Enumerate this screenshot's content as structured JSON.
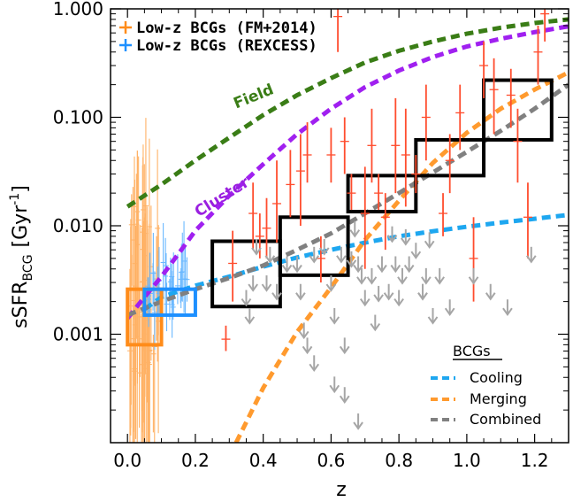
{
  "chart_data": {
    "type": "scatter",
    "xlabel": "z",
    "ylabel": "sSFR",
    "ylabel_sub": "BCG",
    "ylabel_units": "[Gyr",
    "ylabel_sup": "-1",
    "ylabel_close": "]",
    "xlim": [
      -0.05,
      1.3
    ],
    "ylim": [
      0.0001,
      1.0
    ],
    "yscale": "log",
    "x_ticks": [
      "0.0",
      "0.2",
      "0.4",
      "0.6",
      "0.8",
      "1.0",
      "1.2"
    ],
    "x_tick_values": [
      0.0,
      0.2,
      0.4,
      0.6,
      0.8,
      1.0,
      1.2
    ],
    "y_ticks": [
      "1.000",
      "0.100",
      "0.010",
      "0.001"
    ],
    "y_tick_values": [
      1.0,
      0.1,
      0.01,
      0.001
    ],
    "legend": [
      {
        "label": "Low-z BCGs (FM+2014)",
        "color": "#ff8c1a"
      },
      {
        "label": "Low-z BCGs (REXCESS)",
        "color": "#1e90ff"
      }
    ],
    "legend2_title": "BCGs",
    "legend2": [
      {
        "label": "Cooling",
        "color": "#1ea7f0"
      },
      {
        "label": "Merging",
        "color": "#ff9a2e"
      },
      {
        "label": "Combined",
        "color": "#808080"
      }
    ],
    "curve_labels": [
      {
        "label": "Field",
        "color": "#3a7d16",
        "x": 0.32,
        "y": 0.12,
        "angle": -22
      },
      {
        "label": "Cluster",
        "color": "#9a1fe0",
        "x": 0.21,
        "y": 0.012,
        "angle": -32
      }
    ],
    "curves": [
      {
        "name": "field",
        "color": "#3a7d16",
        "points": [
          [
            0.0,
            0.015
          ],
          [
            0.1,
            0.024
          ],
          [
            0.2,
            0.04
          ],
          [
            0.3,
            0.065
          ],
          [
            0.4,
            0.105
          ],
          [
            0.5,
            0.16
          ],
          [
            0.6,
            0.23
          ],
          [
            0.7,
            0.32
          ],
          [
            0.8,
            0.41
          ],
          [
            0.9,
            0.5
          ],
          [
            1.0,
            0.59
          ],
          [
            1.1,
            0.67
          ],
          [
            1.2,
            0.74
          ],
          [
            1.3,
            0.8
          ]
        ]
      },
      {
        "name": "cluster",
        "color": "#a020f0",
        "points": [
          [
            0.0,
            0.0014
          ],
          [
            0.05,
            0.0022
          ],
          [
            0.1,
            0.0034
          ],
          [
            0.15,
            0.0055
          ],
          [
            0.2,
            0.009
          ],
          [
            0.3,
            0.019
          ],
          [
            0.4,
            0.037
          ],
          [
            0.5,
            0.07
          ],
          [
            0.6,
            0.12
          ],
          [
            0.7,
            0.19
          ],
          [
            0.8,
            0.27
          ],
          [
            0.9,
            0.36
          ],
          [
            1.0,
            0.45
          ],
          [
            1.1,
            0.53
          ],
          [
            1.2,
            0.61
          ],
          [
            1.3,
            0.69
          ]
        ]
      },
      {
        "name": "cooling",
        "color": "#1ea7f0",
        "points": [
          [
            0.05,
            0.0017
          ],
          [
            0.1,
            0.0022
          ],
          [
            0.2,
            0.0028
          ],
          [
            0.3,
            0.0034
          ],
          [
            0.4,
            0.0042
          ],
          [
            0.5,
            0.0051
          ],
          [
            0.6,
            0.006
          ],
          [
            0.7,
            0.007
          ],
          [
            0.8,
            0.008
          ],
          [
            0.9,
            0.0089
          ],
          [
            1.0,
            0.0098
          ],
          [
            1.1,
            0.0107
          ],
          [
            1.2,
            0.0116
          ],
          [
            1.3,
            0.0126
          ]
        ]
      },
      {
        "name": "merging",
        "color": "#ff9a2e",
        "points": [
          [
            0.32,
            0.0001
          ],
          [
            0.4,
            0.00032
          ],
          [
            0.5,
            0.00105
          ],
          [
            0.6,
            0.0027
          ],
          [
            0.7,
            0.0074
          ],
          [
            0.8,
            0.017
          ],
          [
            0.9,
            0.038
          ],
          [
            1.0,
            0.072
          ],
          [
            1.1,
            0.12
          ],
          [
            1.2,
            0.18
          ],
          [
            1.3,
            0.26
          ]
        ]
      },
      {
        "name": "combined",
        "color": "#808080",
        "points": [
          [
            0.0,
            0.0015
          ],
          [
            0.1,
            0.002
          ],
          [
            0.2,
            0.0026
          ],
          [
            0.3,
            0.0033
          ],
          [
            0.4,
            0.0043
          ],
          [
            0.5,
            0.006
          ],
          [
            0.6,
            0.0085
          ],
          [
            0.7,
            0.013
          ],
          [
            0.8,
            0.02
          ],
          [
            0.9,
            0.031
          ],
          [
            1.0,
            0.048
          ],
          [
            1.1,
            0.075
          ],
          [
            1.2,
            0.12
          ],
          [
            1.3,
            0.2
          ]
        ]
      }
    ],
    "boxes": [
      {
        "x0": 0.25,
        "x1": 0.45,
        "y0": 0.0018,
        "y1": 0.0072,
        "color": "#000000"
      },
      {
        "x0": 0.45,
        "x1": 0.65,
        "y0": 0.0035,
        "y1": 0.012,
        "color": "#000000"
      },
      {
        "x0": 0.65,
        "x1": 0.85,
        "y0": 0.0135,
        "y1": 0.029,
        "color": "#000000"
      },
      {
        "x0": 0.85,
        "x1": 1.05,
        "y0": 0.029,
        "y1": 0.062,
        "color": "#000000"
      },
      {
        "x0": 1.05,
        "x1": 1.25,
        "y0": 0.062,
        "y1": 0.22,
        "color": "#000000"
      },
      {
        "x0": 0.0,
        "x1": 0.1,
        "y0": 0.0008,
        "y1": 0.0026,
        "color": "#ff8c1a"
      },
      {
        "x0": 0.05,
        "x1": 0.2,
        "y0": 0.0015,
        "y1": 0.0026,
        "color": "#1e90ff"
      }
    ],
    "red_points": [
      [
        0.29,
        0.0009,
        0.0007,
        0.0012
      ],
      [
        0.31,
        0.0045,
        0.002,
        0.009
      ],
      [
        0.37,
        0.013,
        0.006,
        0.025
      ],
      [
        0.39,
        0.008,
        0.005,
        0.013
      ],
      [
        0.41,
        0.0095,
        0.005,
        0.018
      ],
      [
        0.44,
        0.016,
        0.007,
        0.04
      ],
      [
        0.48,
        0.024,
        0.012,
        0.05
      ],
      [
        0.51,
        0.032,
        0.01,
        0.07
      ],
      [
        0.53,
        0.045,
        0.025,
        0.09
      ],
      [
        0.57,
        0.005,
        0.003,
        0.008
      ],
      [
        0.6,
        0.045,
        0.025,
        0.08
      ],
      [
        0.64,
        0.06,
        0.03,
        0.1
      ],
      [
        0.66,
        0.02,
        0.014,
        0.03
      ],
      [
        0.7,
        0.013,
        0.004,
        0.035
      ],
      [
        0.72,
        0.055,
        0.025,
        0.12
      ],
      [
        0.74,
        0.02,
        0.014,
        0.03
      ],
      [
        0.76,
        0.012,
        0.006,
        0.02
      ],
      [
        0.79,
        0.055,
        0.02,
        0.15
      ],
      [
        0.82,
        0.045,
        0.015,
        0.12
      ],
      [
        0.85,
        0.03,
        0.02,
        0.045
      ],
      [
        0.88,
        0.1,
        0.04,
        0.2
      ],
      [
        0.93,
        0.013,
        0.008,
        0.02
      ],
      [
        0.95,
        0.04,
        0.02,
        0.07
      ],
      [
        0.98,
        0.11,
        0.05,
        0.2
      ],
      [
        1.02,
        0.005,
        0.002,
        0.012
      ],
      [
        1.05,
        0.3,
        0.15,
        0.5
      ],
      [
        1.08,
        0.18,
        0.07,
        0.35
      ],
      [
        1.13,
        0.16,
        0.08,
        0.28
      ],
      [
        1.15,
        0.06,
        0.025,
        0.12
      ],
      [
        1.18,
        0.012,
        0.005,
        0.025
      ],
      [
        1.21,
        0.4,
        0.2,
        0.7
      ],
      [
        1.23,
        0.9,
        0.5,
        1.0
      ],
      [
        0.62,
        0.85,
        0.4,
        1.0
      ]
    ],
    "upper_limits": [
      [
        0.35,
        0.0022
      ],
      [
        0.36,
        0.0015
      ],
      [
        0.37,
        0.003
      ],
      [
        0.38,
        0.0065
      ],
      [
        0.41,
        0.003
      ],
      [
        0.42,
        0.0055
      ],
      [
        0.44,
        0.0025
      ],
      [
        0.47,
        0.0045
      ],
      [
        0.5,
        0.0045
      ],
      [
        0.51,
        0.0025
      ],
      [
        0.52,
        0.0011
      ],
      [
        0.53,
        0.0008
      ],
      [
        0.55,
        0.0055
      ],
      [
        0.58,
        0.0065
      ],
      [
        0.6,
        0.003
      ],
      [
        0.61,
        0.0015
      ],
      [
        0.63,
        0.0055
      ],
      [
        0.64,
        0.0008
      ],
      [
        0.66,
        0.005
      ],
      [
        0.67,
        0.0095
      ],
      [
        0.68,
        0.0045
      ],
      [
        0.69,
        0.0035
      ],
      [
        0.7,
        0.0022
      ],
      [
        0.72,
        0.0035
      ],
      [
        0.73,
        0.0013
      ],
      [
        0.74,
        0.0024
      ],
      [
        0.75,
        0.0045
      ],
      [
        0.77,
        0.0025
      ],
      [
        0.78,
        0.0085
      ],
      [
        0.79,
        0.0045
      ],
      [
        0.8,
        0.0022
      ],
      [
        0.81,
        0.0035
      ],
      [
        0.82,
        0.008
      ],
      [
        0.83,
        0.0045
      ],
      [
        0.85,
        0.006
      ],
      [
        0.87,
        0.0025
      ],
      [
        0.88,
        0.0035
      ],
      [
        0.89,
        0.0075
      ],
      [
        0.9,
        0.0015
      ],
      [
        0.92,
        0.0035
      ],
      [
        0.95,
        0.0018
      ],
      [
        1.02,
        0.0035
      ],
      [
        1.07,
        0.0025
      ],
      [
        1.12,
        0.0018
      ],
      [
        1.19,
        0.0055
      ],
      [
        0.68,
        0.00016
      ],
      [
        0.55,
        0.00055
      ],
      [
        0.61,
        0.00035
      ],
      [
        0.64,
        0.00028
      ],
      [
        0.87,
        0.0025
      ]
    ],
    "orange_points_count": 60,
    "blue_points_count": 30
  }
}
